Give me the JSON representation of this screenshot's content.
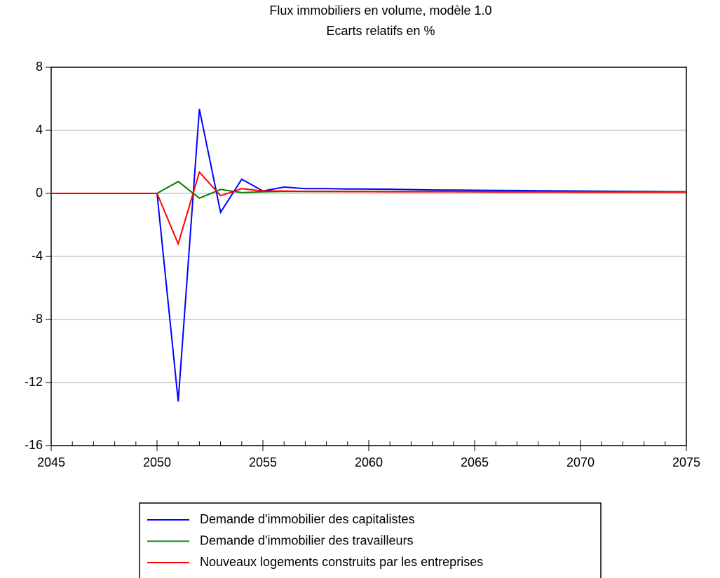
{
  "chart_data": {
    "type": "line",
    "title": "Flux immobiliers en volume, modèle 1.0",
    "subtitle": "Ecarts relatifs en %",
    "x": [
      2045,
      2046,
      2047,
      2048,
      2049,
      2050,
      2051,
      2052,
      2053,
      2054,
      2055,
      2056,
      2057,
      2058,
      2059,
      2060,
      2061,
      2062,
      2063,
      2064,
      2065,
      2066,
      2067,
      2068,
      2069,
      2070,
      2071,
      2072,
      2073,
      2074,
      2075
    ],
    "series": [
      {
        "name": "Demande d'immobilier des capitalistes",
        "color": "#0000ff",
        "values": [
          0,
          0,
          0,
          0,
          0,
          0,
          -13.2,
          5.35,
          -1.2,
          0.9,
          0.15,
          0.4,
          0.3,
          0.3,
          0.28,
          0.27,
          0.26,
          0.24,
          0.22,
          0.21,
          0.2,
          0.19,
          0.18,
          0.17,
          0.16,
          0.15,
          0.14,
          0.13,
          0.12,
          0.11,
          0.1
        ]
      },
      {
        "name": "Demande d'immobilier des travailleurs",
        "color": "#008000",
        "values": [
          0,
          0,
          0,
          0,
          0,
          0,
          0.75,
          -0.3,
          0.25,
          0.05,
          0.1,
          0.12,
          0.12,
          0.12,
          0.12,
          0.12,
          0.11,
          0.11,
          0.11,
          0.11,
          0.1,
          0.1,
          0.1,
          0.1,
          0.1,
          0.1,
          0.1,
          0.1,
          0.1,
          0.1,
          0.1
        ]
      },
      {
        "name": "Nouveaux logements construits par les entreprises",
        "color": "#ff0000",
        "values": [
          0,
          0,
          0,
          0,
          0,
          0,
          -3.2,
          1.35,
          -0.15,
          0.3,
          0.15,
          0.15,
          0.12,
          0.12,
          0.11,
          0.11,
          0.1,
          0.1,
          0.1,
          0.1,
          0.1,
          0.09,
          0.09,
          0.09,
          0.09,
          0.08,
          0.08,
          0.08,
          0.08,
          0.08,
          0.08
        ]
      }
    ],
    "xlim": [
      2045,
      2075
    ],
    "xticks": [
      2045,
      2050,
      2055,
      2060,
      2065,
      2070,
      2075
    ],
    "ylim": [
      -16,
      8
    ],
    "yticks": [
      8,
      4,
      0,
      -4,
      -8,
      -12,
      -16
    ],
    "grid": true,
    "legend": "bottom"
  }
}
